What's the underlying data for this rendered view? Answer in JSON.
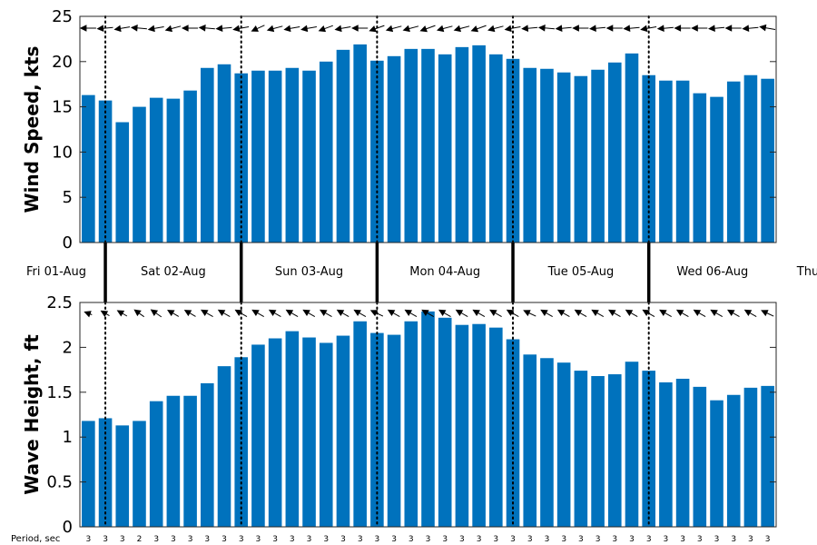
{
  "chart_data": [
    {
      "type": "bar",
      "ylabel": "Wind Speed, kts",
      "ylim": [
        0,
        25
      ],
      "yticks": [
        0,
        5,
        10,
        15,
        20,
        25
      ],
      "bar_color": "#0072BD",
      "values": [
        16.3,
        15.7,
        13.3,
        15.0,
        16.0,
        15.9,
        16.8,
        19.3,
        19.7,
        18.7,
        19.0,
        19.0,
        19.3,
        19.0,
        20.0,
        21.3,
        21.9,
        20.1,
        20.6,
        21.4,
        21.4,
        20.8,
        21.6,
        21.8,
        20.8,
        20.3,
        19.3,
        19.2,
        18.8,
        18.4,
        19.1,
        19.9,
        20.9,
        18.5,
        17.9,
        17.9,
        16.5,
        16.1,
        17.8,
        18.5,
        18.1
      ],
      "direction_arrows": [
        {
          "angle": 180,
          "length": 1.0
        },
        {
          "angle": 185,
          "length": 1.0
        },
        {
          "angle": 190,
          "length": 0.98
        },
        {
          "angle": 175,
          "length": 1.0
        },
        {
          "angle": 190,
          "length": 1.0
        },
        {
          "angle": 195,
          "length": 1.0
        },
        {
          "angle": 180,
          "length": 1.0
        },
        {
          "angle": 175,
          "length": 1.0
        },
        {
          "angle": 185,
          "length": 1.0
        },
        {
          "angle": 190,
          "length": 1.0
        },
        {
          "angle": 205,
          "length": 0.9
        },
        {
          "angle": 195,
          "length": 1.0
        },
        {
          "angle": 190,
          "length": 1.0
        },
        {
          "angle": 190,
          "length": 1.0
        },
        {
          "angle": 200,
          "length": 0.95
        },
        {
          "angle": 190,
          "length": 1.0
        },
        {
          "angle": 180,
          "length": 1.0
        },
        {
          "angle": 200,
          "length": 1.0
        },
        {
          "angle": 195,
          "length": 1.0
        },
        {
          "angle": 195,
          "length": 1.0
        },
        {
          "angle": 200,
          "length": 1.0
        },
        {
          "angle": 195,
          "length": 1.0
        },
        {
          "angle": 195,
          "length": 1.0
        },
        {
          "angle": 200,
          "length": 1.0
        },
        {
          "angle": 195,
          "length": 1.0
        },
        {
          "angle": 190,
          "length": 1.0
        },
        {
          "angle": 185,
          "length": 1.0
        },
        {
          "angle": 175,
          "length": 1.0
        },
        {
          "angle": 185,
          "length": 1.0
        },
        {
          "angle": 180,
          "length": 1.0
        },
        {
          "angle": 185,
          "length": 1.0
        },
        {
          "angle": 180,
          "length": 1.0
        },
        {
          "angle": 185,
          "length": 1.0
        },
        {
          "angle": 190,
          "length": 1.0
        },
        {
          "angle": 185,
          "length": 1.0
        },
        {
          "angle": 180,
          "length": 1.0
        },
        {
          "angle": 180,
          "length": 1.0
        },
        {
          "angle": 185,
          "length": 1.0
        },
        {
          "angle": 180,
          "length": 1.0
        },
        {
          "angle": 185,
          "length": 1.0
        },
        {
          "angle": 170,
          "length": 1.0
        }
      ]
    },
    {
      "type": "bar",
      "ylabel": "Wave Height, ft",
      "ylim": [
        0,
        2.5
      ],
      "yticks": [
        0,
        0.5,
        1,
        1.5,
        2,
        2.5
      ],
      "bar_color": "#0072BD",
      "values": [
        1.18,
        1.21,
        1.13,
        1.18,
        1.4,
        1.46,
        1.46,
        1.6,
        1.79,
        1.89,
        2.03,
        2.1,
        2.18,
        2.11,
        2.05,
        2.13,
        2.29,
        2.16,
        2.14,
        2.29,
        2.4,
        2.33,
        2.25,
        2.26,
        2.22,
        2.09,
        1.92,
        1.88,
        1.83,
        1.74,
        1.68,
        1.7,
        1.84,
        1.74,
        1.61,
        1.65,
        1.56,
        1.41,
        1.47,
        1.55,
        1.57
      ],
      "direction_arrows": [
        {
          "angle": 160,
          "length": 0.5
        },
        {
          "angle": 150,
          "length": 0.6
        },
        {
          "angle": 150,
          "length": 0.7
        },
        {
          "angle": 145,
          "length": 0.75
        },
        {
          "angle": 145,
          "length": 0.8
        },
        {
          "angle": 150,
          "length": 0.8
        },
        {
          "angle": 150,
          "length": 0.8
        },
        {
          "angle": 150,
          "length": 0.85
        },
        {
          "angle": 150,
          "length": 0.85
        },
        {
          "angle": 150,
          "length": 0.85
        },
        {
          "angle": 150,
          "length": 0.85
        },
        {
          "angle": 150,
          "length": 0.85
        },
        {
          "angle": 150,
          "length": 0.85
        },
        {
          "angle": 150,
          "length": 0.85
        },
        {
          "angle": 150,
          "length": 0.85
        },
        {
          "angle": 150,
          "length": 0.85
        },
        {
          "angle": 150,
          "length": 0.85
        },
        {
          "angle": 155,
          "length": 0.85
        },
        {
          "angle": 150,
          "length": 0.85
        },
        {
          "angle": 150,
          "length": 0.85
        },
        {
          "angle": 150,
          "length": 0.85
        },
        {
          "angle": 150,
          "length": 0.85
        },
        {
          "angle": 150,
          "length": 0.85
        },
        {
          "angle": 150,
          "length": 0.85
        },
        {
          "angle": 150,
          "length": 0.85
        },
        {
          "angle": 150,
          "length": 0.85
        },
        {
          "angle": 155,
          "length": 0.85
        },
        {
          "angle": 150,
          "length": 0.85
        },
        {
          "angle": 150,
          "length": 0.85
        },
        {
          "angle": 150,
          "length": 0.85
        },
        {
          "angle": 150,
          "length": 0.85
        },
        {
          "angle": 150,
          "length": 0.85
        },
        {
          "angle": 150,
          "length": 0.85
        },
        {
          "angle": 150,
          "length": 0.85
        },
        {
          "angle": 150,
          "length": 0.85
        },
        {
          "angle": 150,
          "length": 0.85
        },
        {
          "angle": 150,
          "length": 0.85
        },
        {
          "angle": 150,
          "length": 0.85
        },
        {
          "angle": 150,
          "length": 0.85
        },
        {
          "angle": 150,
          "length": 0.85
        },
        {
          "angle": 155,
          "length": 0.85
        }
      ]
    }
  ],
  "day_labels": [
    "Fri 01-Aug",
    "Sat 02-Aug",
    "Sun 03-Aug",
    "Mon 04-Aug",
    "Tue 05-Aug",
    "Wed 06-Aug",
    "Thu"
  ],
  "day_boundary_bar_index": [
    1,
    9,
    17,
    25,
    33
  ],
  "period_label": "Period, sec",
  "period_values": [
    "3",
    "3",
    "3",
    "2",
    "3",
    "3",
    "3",
    "3",
    "3",
    "3",
    "3",
    "3",
    "3",
    "3",
    "3",
    "3",
    "3",
    "3",
    "3",
    "3",
    "3",
    "3",
    "3",
    "3",
    "3",
    "3",
    "3",
    "3",
    "3",
    "3",
    "3",
    "3",
    "3",
    "3",
    "3",
    "3",
    "3",
    "3",
    "3",
    "3",
    "3"
  ]
}
